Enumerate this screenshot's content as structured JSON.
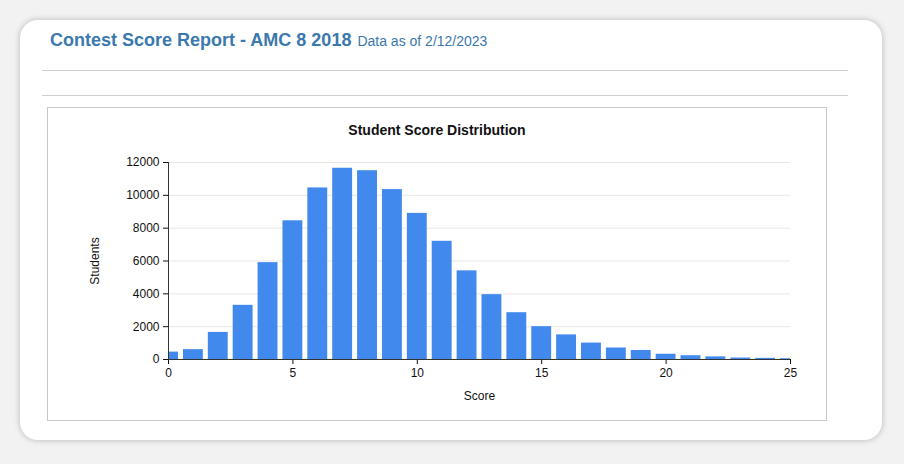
{
  "header": {
    "title": "Contest Score Report - AMC 8 2018",
    "note": "Data as of 2/12/2023"
  },
  "chart_data": {
    "type": "bar",
    "title": "Student Score Distribution",
    "x_label": "Score",
    "y_label": "Students",
    "x": [
      0,
      1,
      2,
      3,
      4,
      5,
      6,
      7,
      8,
      9,
      10,
      11,
      12,
      13,
      14,
      15,
      16,
      17,
      18,
      19,
      20,
      21,
      22,
      23,
      24,
      25
    ],
    "values": [
      450,
      600,
      1650,
      3300,
      5900,
      8450,
      10450,
      11650,
      11500,
      10350,
      8900,
      7200,
      5400,
      3950,
      2850,
      2000,
      1500,
      1000,
      700,
      550,
      320,
      230,
      160,
      90,
      70,
      50
    ],
    "color": "#4189ec",
    "xlim": [
      0,
      25
    ],
    "xticks": [
      0,
      5,
      10,
      15,
      20,
      25
    ],
    "ylim": [
      0,
      12000
    ],
    "yticks": [
      0,
      2000,
      4000,
      6000,
      8000,
      10000,
      12000
    ],
    "grid": true
  }
}
